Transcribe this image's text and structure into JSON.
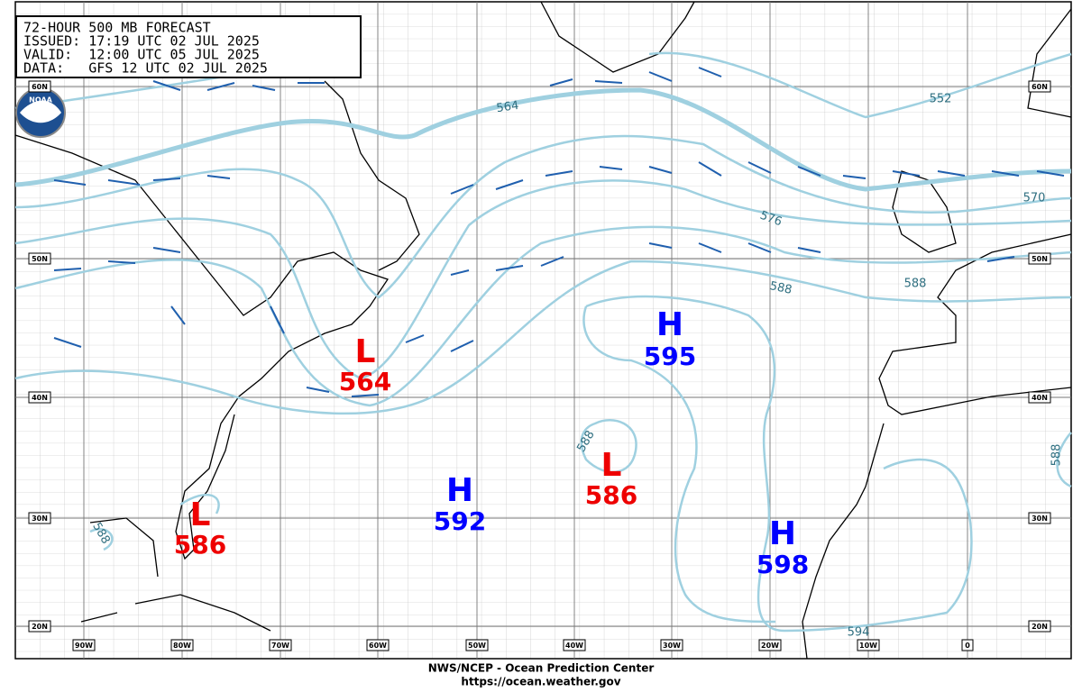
{
  "header": {
    "lines": [
      "72-HOUR 500 MB FORECAST",
      "ISSUED: 17:19 UTC 02 JUL 2025",
      "VALID:  12:00 UTC 05 JUL 2025",
      "DATA:   GFS 12 UTC 02 JUL 2025"
    ]
  },
  "logo": "NOAA",
  "latitude_labels": [
    "60N",
    "50N",
    "40N",
    "30N",
    "20N"
  ],
  "longitude_labels": [
    "90W",
    "80W",
    "70W",
    "60W",
    "50W",
    "40W",
    "30W",
    "20W",
    "10W",
    "0"
  ],
  "pressure_centers": [
    {
      "type": "L",
      "value": 564
    },
    {
      "type": "L",
      "value": 586
    },
    {
      "type": "H",
      "value": 592
    },
    {
      "type": "L",
      "value": 586
    },
    {
      "type": "H",
      "value": 595
    },
    {
      "type": "H",
      "value": 598
    }
  ],
  "contour_labels": [
    564,
    552,
    570,
    576,
    588,
    588,
    588,
    588,
    594,
    588
  ],
  "footer": {
    "agency": "NWS/NCEP - Ocean Prediction Center",
    "url": "https://ocean.weather.gov"
  }
}
